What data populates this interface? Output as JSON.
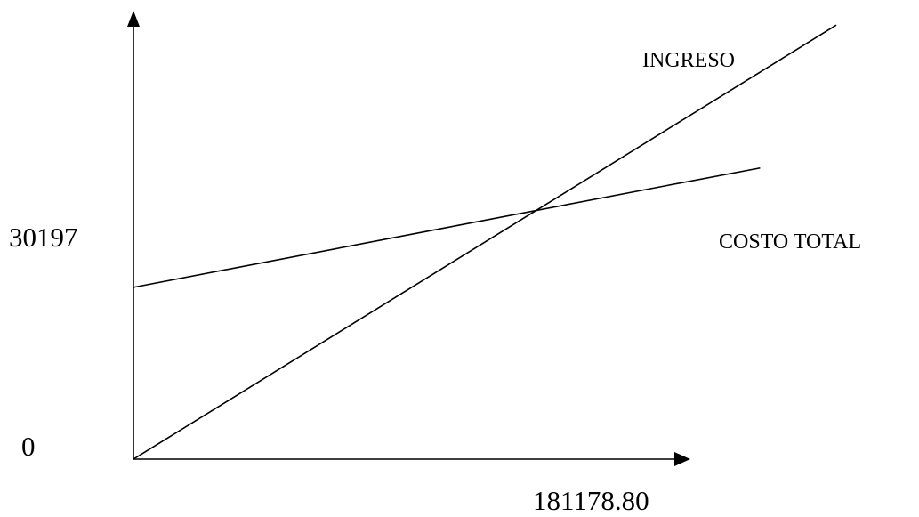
{
  "chart_data": {
    "type": "line",
    "x_ticks": [
      {
        "value": 181178.8,
        "label": "181178.80"
      }
    ],
    "y_ticks": [
      {
        "value": 0,
        "label": "0"
      },
      {
        "value": 30197,
        "label": "30197"
      }
    ],
    "xlim": [
      0,
      240000
    ],
    "ylim": [
      0,
      49000
    ],
    "series": [
      {
        "name": "INGRESO",
        "x": [
          0,
          240000
        ],
        "y": [
          0,
          48000
        ]
      },
      {
        "name": "COSTO TOTAL",
        "x": [
          0,
          181178.8,
          214000
        ],
        "y": [
          19000,
          30197,
          32200
        ]
      }
    ],
    "grid": false,
    "colors": {
      "line": "#000000",
      "axis": "#000000",
      "background": "#ffffff"
    }
  }
}
